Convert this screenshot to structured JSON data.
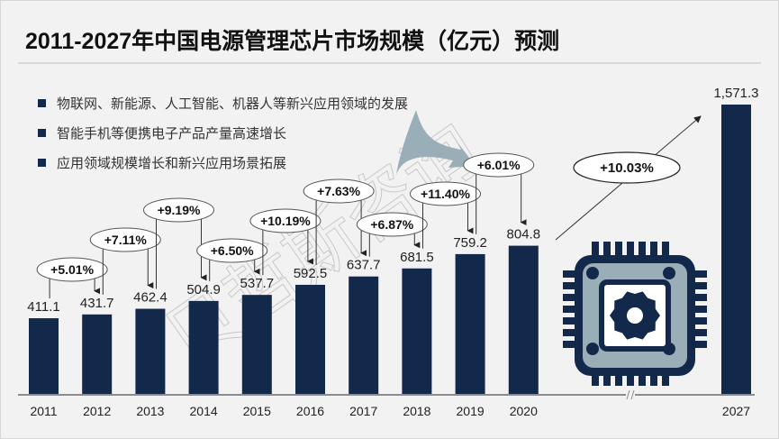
{
  "title": "2011-2027年中国电源管理芯片市场规模（亿元）预测",
  "bullets": [
    "物联网、新能源、人工智能、机器人等新兴应用领域的发展",
    "智能手机等便携电子产品产量高速增长",
    "应用领域规模增长和新兴应用场景拓展"
  ],
  "watermark": "贝哲斯咨询",
  "axis_break_label": "//",
  "icon": "chip-icon",
  "colors": {
    "bar": "#13294b",
    "accent_arrow": "#9aaeb8",
    "chip_light": "#9aaeb8",
    "background": "#f2f2f2"
  },
  "chart_data": {
    "type": "bar",
    "title": "2011-2027年中国电源管理芯片市场规模（亿元）预测",
    "xlabel": "",
    "ylabel": "亿元",
    "categories": [
      "2011",
      "2012",
      "2013",
      "2014",
      "2015",
      "2016",
      "2017",
      "2018",
      "2019",
      "2020",
      "2027"
    ],
    "values": [
      411.1,
      431.7,
      462.4,
      504.9,
      537.7,
      592.5,
      637.7,
      681.5,
      759.2,
      804.8,
      1571.3
    ],
    "value_labels": [
      "411.1",
      "431.7",
      "462.4",
      "504.9",
      "537.7",
      "592.5",
      "637.7",
      "681.5",
      "759.2",
      "804.8",
      "1,571.3"
    ],
    "growth_labels": [
      "+5.01%",
      "+7.11%",
      "+9.19%",
      "+6.50%",
      "+10.19%",
      "+7.63%",
      "+6.87%",
      "+11.40%",
      "+6.01%"
    ],
    "cagr_label": "+10.03%",
    "axis_break_between": [
      "2020",
      "2027"
    ],
    "grid": false,
    "legend": "none"
  }
}
